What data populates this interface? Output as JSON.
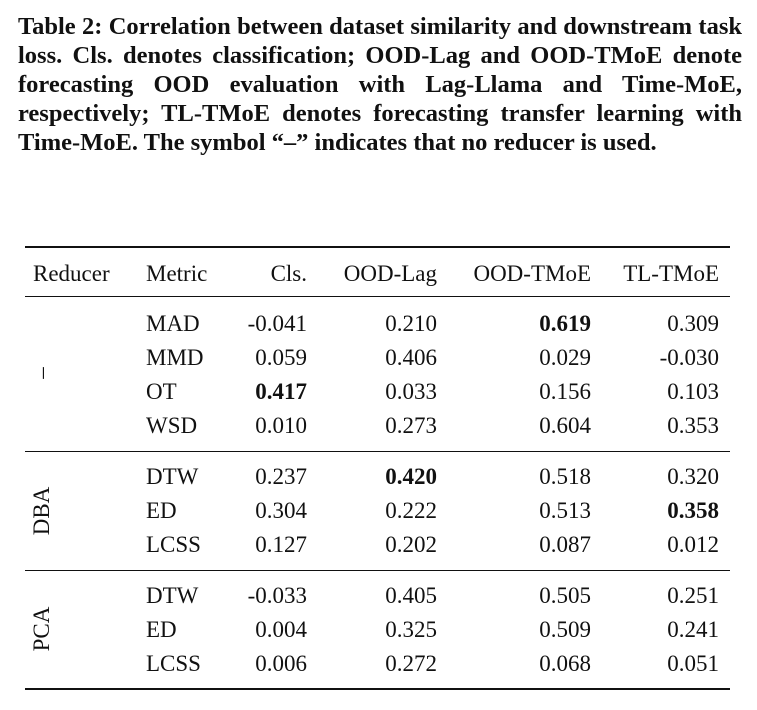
{
  "caption": "Table 2: Correlation between dataset similarity and downstream task loss. Cls. denotes classification; OOD-Lag and OOD-TMoE denote forecasting OOD evaluation with Lag-Llama and Time-MoE, respectively; TL-TMoE denotes forecasting transfer learning with Time-MoE. The symbol “–” indicates that no reducer is used.",
  "headers": {
    "reducer": "Reducer",
    "metric": "Metric",
    "cls": "Cls.",
    "ood_lag": "OOD-Lag",
    "ood_tmoe": "OOD-TMoE",
    "tl_tmoe": "TL-TMoE"
  },
  "groups": [
    {
      "reducer": "–",
      "rows": [
        {
          "metric": "MAD",
          "cls": "-0.041",
          "ood_lag": "0.210",
          "ood_tmoe": "0.619",
          "tl_tmoe": "0.309"
        },
        {
          "metric": "MMD",
          "cls": "0.059",
          "ood_lag": "0.406",
          "ood_tmoe": "0.029",
          "tl_tmoe": "-0.030"
        },
        {
          "metric": "OT",
          "cls": "0.417",
          "ood_lag": "0.033",
          "ood_tmoe": "0.156",
          "tl_tmoe": "0.103"
        },
        {
          "metric": "WSD",
          "cls": "0.010",
          "ood_lag": "0.273",
          "ood_tmoe": "0.604",
          "tl_tmoe": "0.353"
        }
      ]
    },
    {
      "reducer": "DBA",
      "rows": [
        {
          "metric": "DTW",
          "cls": "0.237",
          "ood_lag": "0.420",
          "ood_tmoe": "0.518",
          "tl_tmoe": "0.320"
        },
        {
          "metric": "ED",
          "cls": "0.304",
          "ood_lag": "0.222",
          "ood_tmoe": "0.513",
          "tl_tmoe": "0.358"
        },
        {
          "metric": "LCSS",
          "cls": "0.127",
          "ood_lag": "0.202",
          "ood_tmoe": "0.087",
          "tl_tmoe": "0.012"
        }
      ]
    },
    {
      "reducer": "PCA",
      "rows": [
        {
          "metric": "DTW",
          "cls": "-0.033",
          "ood_lag": "0.405",
          "ood_tmoe": "0.505",
          "tl_tmoe": "0.251"
        },
        {
          "metric": "ED",
          "cls": "0.004",
          "ood_lag": "0.325",
          "ood_tmoe": "0.509",
          "tl_tmoe": "0.241"
        },
        {
          "metric": "LCSS",
          "cls": "0.006",
          "ood_lag": "0.272",
          "ood_tmoe": "0.068",
          "tl_tmoe": "0.051"
        }
      ]
    }
  ]
}
